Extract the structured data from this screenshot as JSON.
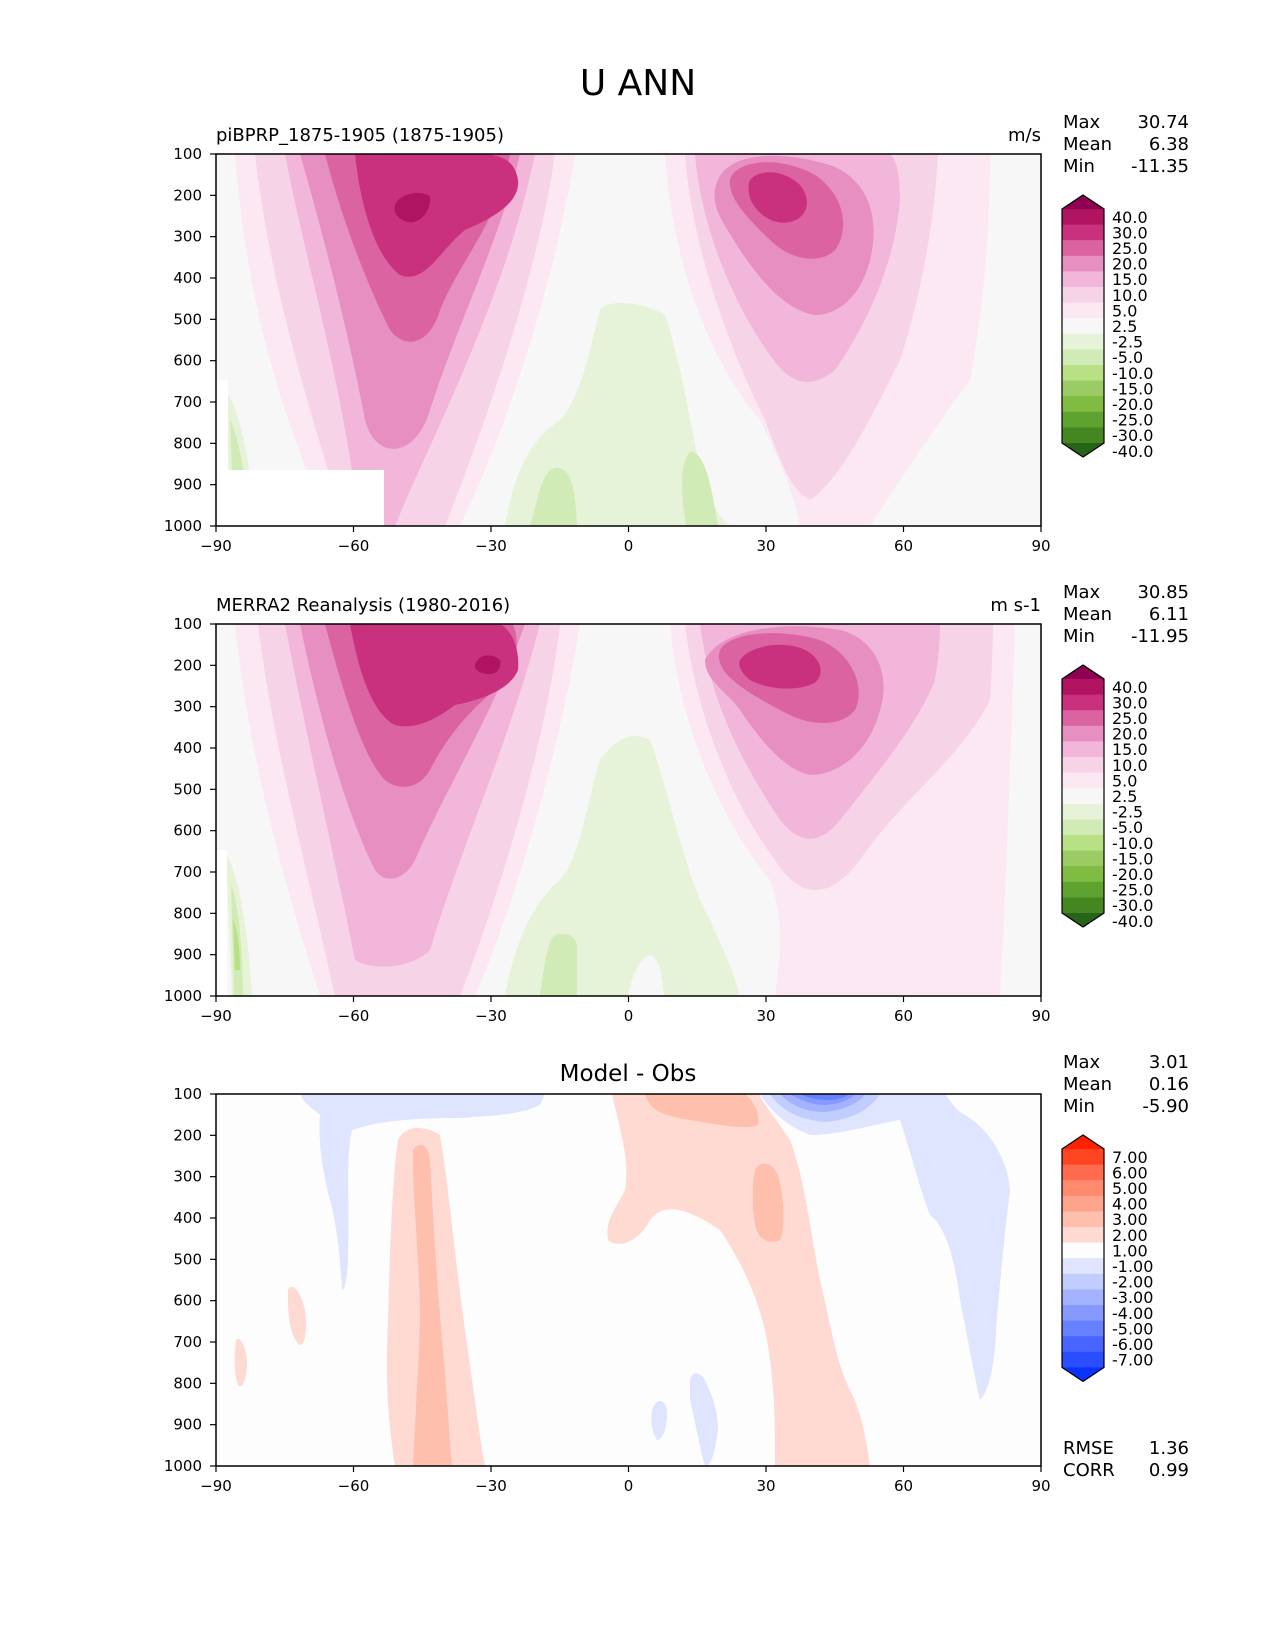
{
  "title": "U ANN",
  "colors": {
    "div_levels": [
      "#8e0152",
      "#b0135f",
      "#c9317f",
      "#db63a2",
      "#e68fc0",
      "#f1b6da",
      "#f7d3e8",
      "#fbe8f2",
      "#f7f7f7",
      "#e6f3d8",
      "#d0ebb5",
      "#b8e186",
      "#9acb64",
      "#7fbc41",
      "#5ea22f",
      "#44861f",
      "#276419"
    ],
    "diff_levels": [
      "#ff2200",
      "#ff4422",
      "#ff6b4f",
      "#ff8a6e",
      "#ffa48c",
      "#ffbfad",
      "#ffdad2",
      "#fdfdfd",
      "#dfe5ff",
      "#c1ccff",
      "#a3b3ff",
      "#8599ff",
      "#6680ff",
      "#4866ff",
      "#2a4dff",
      "#0b33ff"
    ]
  },
  "chart_data": [
    {
      "id": "test",
      "type": "heatmap",
      "title": "piBPRP_1875-1905 (1875-1905)",
      "units": "m/s",
      "stats": [
        {
          "label": "Max",
          "value": "30.74"
        },
        {
          "label": "Mean",
          "value": "6.38"
        },
        {
          "label": "Min",
          "value": "-11.35"
        }
      ],
      "xlim": [
        -90,
        90
      ],
      "xticks": [
        "−90",
        "−60",
        "−30",
        "0",
        "30",
        "60",
        "90"
      ],
      "ylim": [
        1000,
        100
      ],
      "yticks": [
        "100",
        "200",
        "300",
        "400",
        "500",
        "600",
        "700",
        "800",
        "900",
        "1000"
      ],
      "colorbar_labels": [
        "40.0",
        "30.0",
        "25.0",
        "20.0",
        "15.0",
        "10.0",
        "5.0",
        "2.5",
        "-2.5",
        "-5.0",
        "-10.0",
        "-15.0",
        "-20.0",
        "-25.0",
        "-30.0",
        "-40.0"
      ]
    },
    {
      "id": "ref",
      "type": "heatmap",
      "title": "MERRA2 Reanalysis (1980-2016)",
      "units": "m s-1",
      "stats": [
        {
          "label": "Max",
          "value": "30.85"
        },
        {
          "label": "Mean",
          "value": "6.11"
        },
        {
          "label": "Min",
          "value": "-11.95"
        }
      ],
      "xlim": [
        -90,
        90
      ],
      "xticks": [
        "−90",
        "−60",
        "−30",
        "0",
        "30",
        "60",
        "90"
      ],
      "ylim": [
        1000,
        100
      ],
      "yticks": [
        "100",
        "200",
        "300",
        "400",
        "500",
        "600",
        "700",
        "800",
        "900",
        "1000"
      ],
      "colorbar_labels": [
        "40.0",
        "30.0",
        "25.0",
        "20.0",
        "15.0",
        "10.0",
        "5.0",
        "2.5",
        "-2.5",
        "-5.0",
        "-10.0",
        "-15.0",
        "-20.0",
        "-25.0",
        "-30.0",
        "-40.0"
      ]
    },
    {
      "id": "diff",
      "type": "heatmap",
      "title": "Model - Obs",
      "units": "",
      "stats": [
        {
          "label": "Max",
          "value": "3.01"
        },
        {
          "label": "Mean",
          "value": "0.16"
        },
        {
          "label": "Min",
          "value": "-5.90"
        }
      ],
      "metrics": [
        {
          "label": "RMSE",
          "value": "1.36"
        },
        {
          "label": "CORR",
          "value": "0.99"
        }
      ],
      "xlim": [
        -90,
        90
      ],
      "xticks": [
        "−90",
        "−60",
        "−30",
        "0",
        "30",
        "60",
        "90"
      ],
      "ylim": [
        1000,
        100
      ],
      "yticks": [
        "100",
        "200",
        "300",
        "400",
        "500",
        "600",
        "700",
        "800",
        "900",
        "1000"
      ],
      "colorbar_labels": [
        "7.00",
        "6.00",
        "5.00",
        "4.00",
        "3.00",
        "2.00",
        "1.00",
        "-1.00",
        "-2.00",
        "-3.00",
        "-4.00",
        "-5.00",
        "-6.00",
        "-7.00"
      ]
    }
  ]
}
